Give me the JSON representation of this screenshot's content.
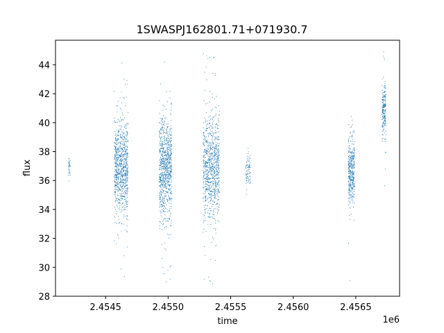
{
  "chart_data": {
    "type": "scatter",
    "title": "1SWASPJ162801.71+071930.7",
    "xlabel": "time",
    "ylabel": "flux",
    "x_offset_label": "1e6",
    "xlim": [
      2.4541,
      2.45685
    ],
    "ylim": [
      28,
      45.7
    ],
    "x_ticks": [
      2.4545,
      2.455,
      2.4555,
      2.456,
      2.4565
    ],
    "x_tick_labels": [
      "2.4545",
      "2.4550",
      "2.4555",
      "2.4560",
      "2.4565"
    ],
    "y_ticks": [
      28,
      30,
      32,
      34,
      36,
      38,
      40,
      42,
      44
    ],
    "y_tick_labels": [
      "28",
      "30",
      "32",
      "34",
      "36",
      "38",
      "40",
      "42",
      "44"
    ],
    "grid": false,
    "marker_color": "#1f77b4",
    "segments": [
      {
        "x_start": 2.4542,
        "x_end": 2.45422,
        "y_center": 37.0,
        "y_spread": 0.4,
        "count": 30
      },
      {
        "x_start": 2.45457,
        "x_end": 2.45468,
        "y_center": 36.9,
        "y_spread": 1.6,
        "count": 900
      },
      {
        "x_start": 2.45493,
        "x_end": 2.45503,
        "y_center": 36.8,
        "y_spread": 1.7,
        "count": 900
      },
      {
        "x_start": 2.45528,
        "x_end": 2.45541,
        "y_center": 37.0,
        "y_spread": 1.8,
        "count": 900
      },
      {
        "x_start": 2.45562,
        "x_end": 2.45566,
        "y_center": 36.8,
        "y_spread": 0.5,
        "count": 80
      },
      {
        "x_start": 2.45644,
        "x_end": 2.45649,
        "y_center": 36.6,
        "y_spread": 1.2,
        "count": 400
      },
      {
        "x_start": 2.45671,
        "x_end": 2.45674,
        "y_center": 40.8,
        "y_spread": 0.9,
        "count": 220
      }
    ]
  }
}
